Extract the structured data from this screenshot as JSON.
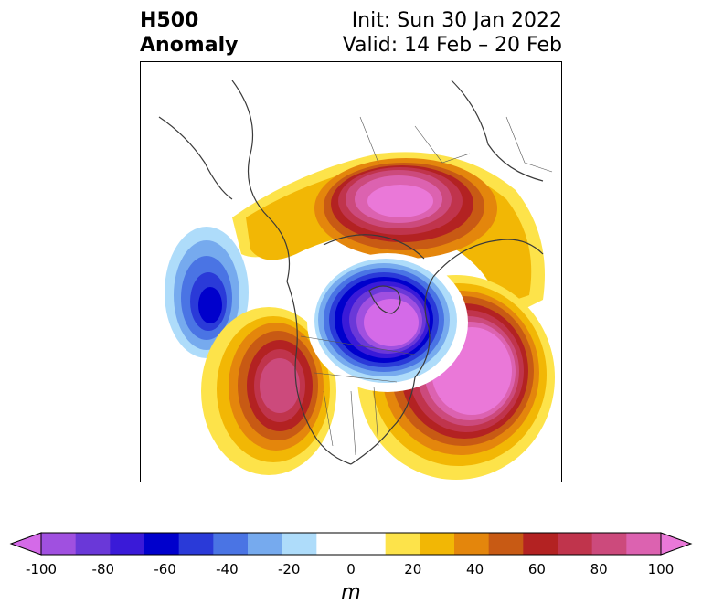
{
  "title": {
    "left_line1": "H500",
    "left_line2": "Anomaly",
    "right_line1": "Init: Sun 30 Jan 2022",
    "right_line2": "Valid: 14 Feb – 20 Feb"
  },
  "colorbar": {
    "units": "m",
    "ticks": [
      "-100",
      "-80",
      "-60",
      "-40",
      "-20",
      "0",
      "20",
      "40",
      "60",
      "80",
      "100"
    ],
    "min": -100,
    "max": 100,
    "step": 10,
    "colors": [
      "#d46ae8",
      "#a050e0",
      "#6a38d8",
      "#3a1ad8",
      "#0000cc",
      "#2a3ad8",
      "#4a74e4",
      "#76aaee",
      "#aedcfa",
      "#ffffff",
      "#ffffff",
      "#fde34a",
      "#f2b705",
      "#e4860c",
      "#c85a14",
      "#b32222",
      "#c0344c",
      "#cc4a7c",
      "#dc62b0",
      "#ea78d8"
    ]
  },
  "map": {
    "anomalies": [
      {
        "name": "pacific-trough",
        "sign": "negative",
        "peak_m": -60
      },
      {
        "name": "arctic-trough",
        "sign": "negative",
        "peak_m": -100
      },
      {
        "name": "western-us-ridge",
        "sign": "positive",
        "peak_m": 80
      },
      {
        "name": "atlantic-ridge",
        "sign": "positive",
        "peak_m": 100
      },
      {
        "name": "siberian-ridge",
        "sign": "positive",
        "peak_m": 100
      }
    ]
  }
}
